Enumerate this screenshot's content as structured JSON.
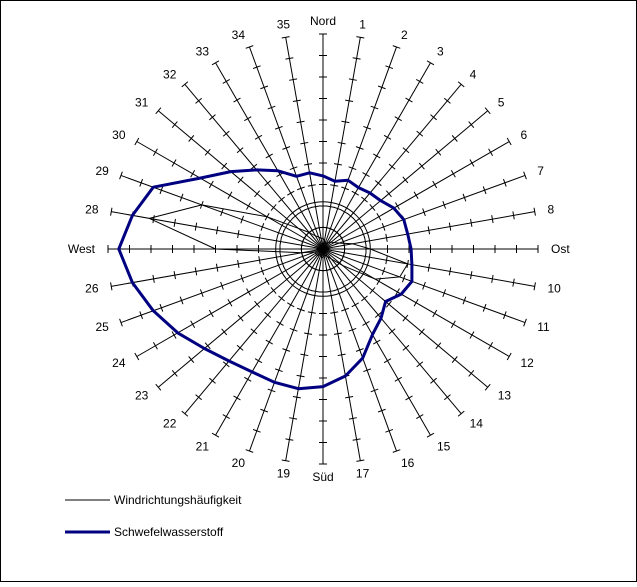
{
  "chart_data": {
    "type": "radar",
    "title": "",
    "direction_labels": [
      "Nord",
      "1",
      "2",
      "3",
      "4",
      "5",
      "6",
      "7",
      "8",
      "Ost",
      "10",
      "11",
      "12",
      "13",
      "14",
      "15",
      "16",
      "17",
      "Süd",
      "19",
      "20",
      "21",
      "22",
      "23",
      "24",
      "25",
      "26",
      "West",
      "28",
      "29",
      "30",
      "31",
      "32",
      "33",
      "34",
      "35"
    ],
    "radial_range": [
      0,
      1
    ],
    "tick_step": 0.1,
    "reference_circle": 0.22,
    "grid": true,
    "legend_position": "bottom-left",
    "series": [
      {
        "name": "Windrichtungshäufigkeit",
        "color": "#000000",
        "line_width": 1,
        "values": [
          0.05,
          0.04,
          0.03,
          0.03,
          0.04,
          0.05,
          0.06,
          0.08,
          0.14,
          0.22,
          0.4,
          0.38,
          0.28,
          0.12,
          0.06,
          0.04,
          0.03,
          0.03,
          0.04,
          0.04,
          0.03,
          0.03,
          0.04,
          0.04,
          0.04,
          0.04,
          0.1,
          0.5,
          0.82,
          0.6,
          0.3,
          0.15,
          0.1,
          0.07,
          0.06,
          0.05
        ]
      },
      {
        "name": "Schwefelwasserstoff",
        "color": "#000080",
        "line_width": 3,
        "values": [
          0.34,
          0.32,
          0.34,
          0.33,
          0.34,
          0.35,
          0.38,
          0.4,
          0.4,
          0.41,
          0.42,
          0.44,
          0.42,
          0.38,
          0.42,
          0.46,
          0.54,
          0.6,
          0.64,
          0.66,
          0.66,
          0.66,
          0.68,
          0.72,
          0.78,
          0.84,
          0.9,
          0.95,
          0.9,
          0.84,
          0.66,
          0.56,
          0.48,
          0.42,
          0.36,
          0.36
        ]
      }
    ]
  }
}
